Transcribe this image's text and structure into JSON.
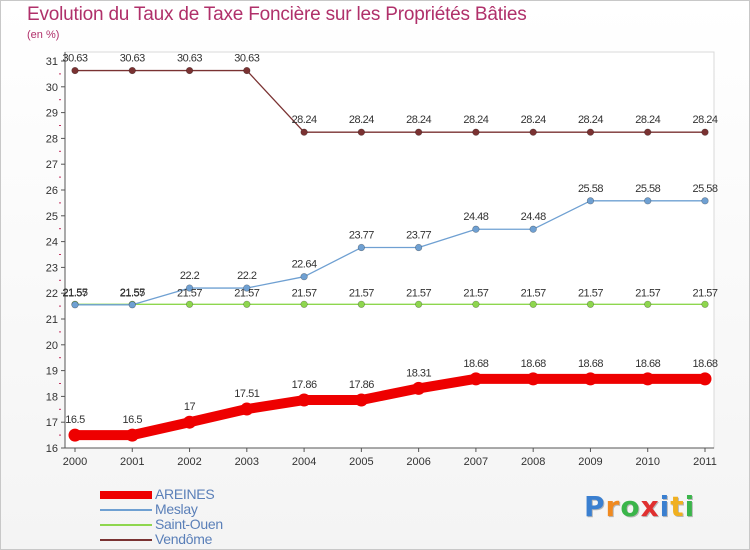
{
  "chart_data": {
    "type": "line",
    "title": "Evolution du Taux de Taxe Foncière sur les Propriétés Bâties",
    "ylabel": "(en %)",
    "xlabel": "",
    "ylim": [
      16,
      31
    ],
    "yticks": [
      "16",
      "17",
      "18",
      "19",
      "20",
      "21",
      "22",
      "23",
      "24",
      "25",
      "26",
      "27",
      "28",
      "29",
      "30",
      "31"
    ],
    "categories": [
      "2000",
      "2001",
      "2002",
      "2003",
      "2004",
      "2005",
      "2006",
      "2007",
      "2008",
      "2009",
      "2010",
      "2011"
    ],
    "series": [
      {
        "name": "AREINES",
        "color": "#ee0000",
        "values": [
          16.5,
          16.5,
          17,
          17.51,
          17.86,
          17.86,
          18.31,
          18.68,
          18.68,
          18.68,
          18.68,
          18.68
        ],
        "labels": [
          "16.5",
          "16.5",
          "17",
          "17.51",
          "17.86",
          "17.86",
          "18.31",
          "18.68",
          "18.68",
          "18.68",
          "18.68",
          "18.68"
        ]
      },
      {
        "name": "Meslay",
        "color": "#6fa0d2",
        "values": [
          21.55,
          21.55,
          22.2,
          22.2,
          22.64,
          23.77,
          23.77,
          24.48,
          24.48,
          25.58,
          25.58,
          25.58
        ],
        "labels": [
          "21.55",
          "21.55",
          "22.2",
          "22.2",
          "22.64",
          "23.77",
          "23.77",
          "24.48",
          "24.48",
          "25.58",
          "25.58",
          "25.58"
        ]
      },
      {
        "name": "Saint-Ouen",
        "color": "#8ed64e",
        "values": [
          21.57,
          21.57,
          21.57,
          21.57,
          21.57,
          21.57,
          21.57,
          21.57,
          21.57,
          21.57,
          21.57,
          21.57
        ],
        "labels": [
          "21.57",
          "21.57",
          "21.57",
          "21.57",
          "21.57",
          "21.57",
          "21.57",
          "21.57",
          "21.57",
          "21.57",
          "21.57",
          "21.57"
        ]
      },
      {
        "name": "Vendôme",
        "color": "#7a3232",
        "values": [
          30.63,
          30.63,
          30.63,
          30.63,
          28.24,
          28.24,
          28.24,
          28.24,
          28.24,
          28.24,
          28.24,
          28.24
        ],
        "labels": [
          "30.63",
          "30.63",
          "30.63",
          "30.63",
          "28.24",
          "28.24",
          "28.24",
          "28.24",
          "28.24",
          "28.24",
          "28.24",
          "28.24"
        ]
      }
    ],
    "legend_position": "bottom-left"
  },
  "logo": {
    "letters": [
      "P",
      "r",
      "o",
      "x",
      "i",
      "t",
      "i"
    ],
    "colors": [
      "#3a7fd0",
      "#f08a20",
      "#3ab54a",
      "#e03030",
      "#3a7fd0",
      "#f0b020",
      "#3ab54a"
    ]
  }
}
